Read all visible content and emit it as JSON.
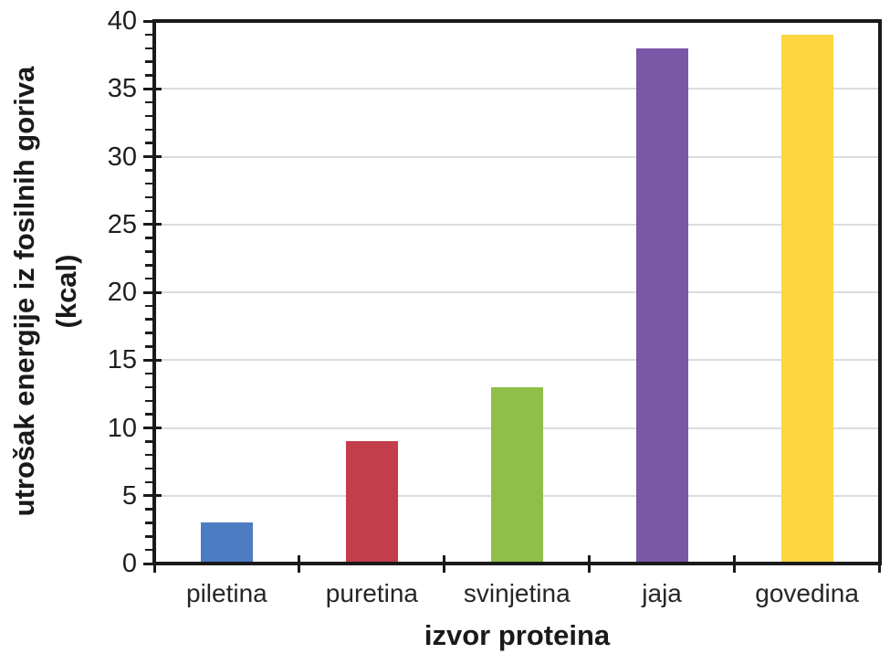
{
  "chart_data": {
    "type": "bar",
    "categories": [
      "piletina",
      "puretina",
      "svinjetina",
      "jaja",
      "govedina"
    ],
    "values": [
      3,
      9,
      13,
      38,
      39
    ],
    "bar_colors": [
      "#4D7CC3",
      "#C23E4A",
      "#8FBF49",
      "#7A57A7",
      "#FDD640"
    ],
    "xlabel": "izvor proteina",
    "ylabel": "utrošak energije iz fosilnih goriva (kcal)",
    "ylabel_lines": [
      "utrošak energije iz fosilnih goriva",
      "(kcal)"
    ],
    "ylim": [
      0,
      40
    ],
    "ytick_step": 5,
    "ytick_minor_step": 1,
    "ytick_labels": [
      "0",
      "5",
      "10",
      "15",
      "20",
      "25",
      "30",
      "35",
      "40"
    ],
    "grid": "horizontal-major-on",
    "legend": "none",
    "axis_color": "#1a1a1a",
    "grid_color": "#dcdcdc",
    "tick_label_color": "#262626"
  }
}
